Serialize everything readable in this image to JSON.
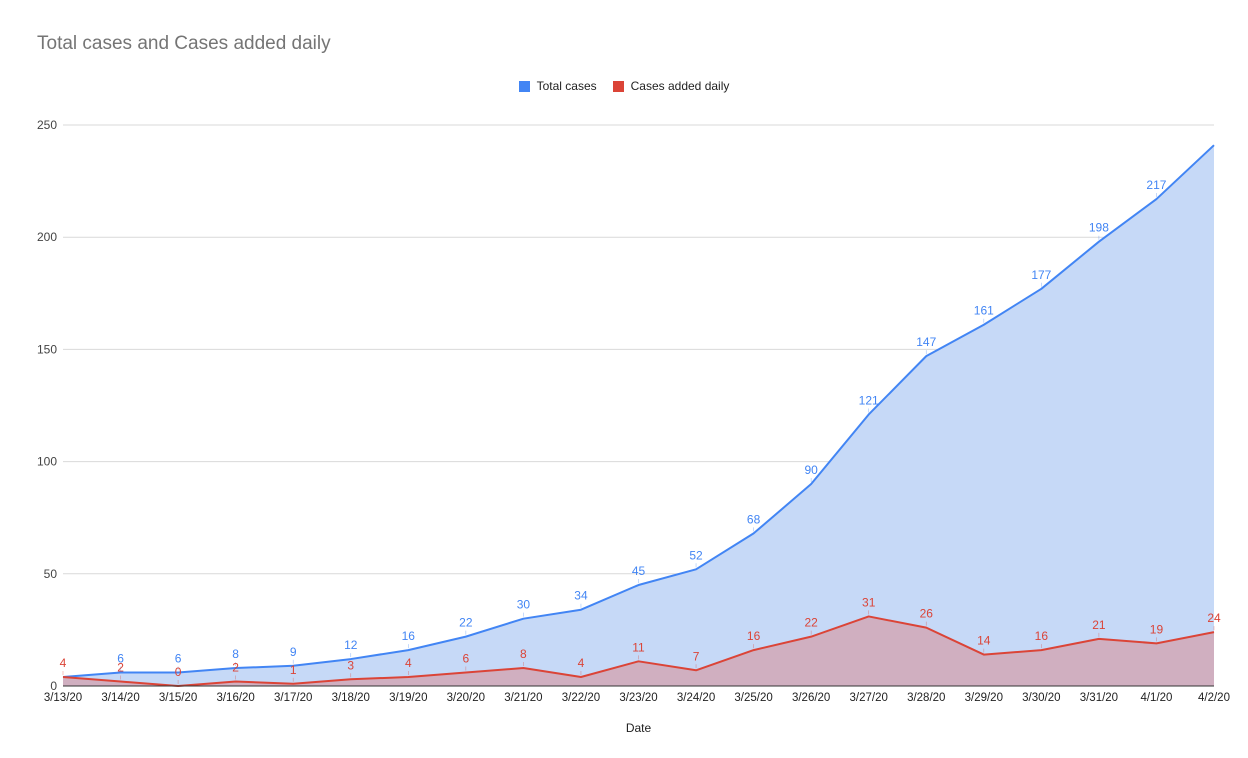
{
  "chart_data": {
    "type": "area",
    "title": "Total cases and Cases added daily",
    "xlabel": "Date",
    "ylabel": "",
    "ylim": [
      0,
      250
    ],
    "yticks": [
      0,
      50,
      100,
      150,
      200,
      250
    ],
    "grid": true,
    "legend_position": "top-center",
    "categories": [
      "3/13/20",
      "3/14/20",
      "3/15/20",
      "3/16/20",
      "3/17/20",
      "3/18/20",
      "3/19/20",
      "3/20/20",
      "3/21/20",
      "3/22/20",
      "3/23/20",
      "3/24/20",
      "3/25/20",
      "3/26/20",
      "3/27/20",
      "3/28/20",
      "3/29/20",
      "3/30/20",
      "3/31/20",
      "4/1/20",
      "4/2/20"
    ],
    "series": [
      {
        "name": "Total cases",
        "color": "#4285f4",
        "fill": "#c6d9f7",
        "values": [
          4,
          6,
          6,
          8,
          9,
          12,
          16,
          22,
          30,
          34,
          45,
          52,
          68,
          90,
          121,
          147,
          161,
          177,
          198,
          217,
          241
        ],
        "labels": [
          "",
          "6",
          "6",
          "8",
          "9",
          "12",
          "16",
          "22",
          "30",
          "34",
          "45",
          "52",
          "68",
          "90",
          "121",
          "147",
          "161",
          "177",
          "198",
          "217",
          ""
        ]
      },
      {
        "name": "Cases added daily",
        "color": "#db4437",
        "fill": "#d1a7b6",
        "values": [
          4,
          2,
          0,
          2,
          1,
          3,
          4,
          6,
          8,
          4,
          11,
          7,
          16,
          22,
          31,
          26,
          14,
          16,
          21,
          19,
          24
        ],
        "labels": [
          "4",
          "2",
          "0",
          "2",
          "1",
          "3",
          "4",
          "6",
          "8",
          "4",
          "11",
          "7",
          "16",
          "22",
          "31",
          "26",
          "14",
          "16",
          "21",
          "19",
          "24"
        ]
      }
    ]
  }
}
